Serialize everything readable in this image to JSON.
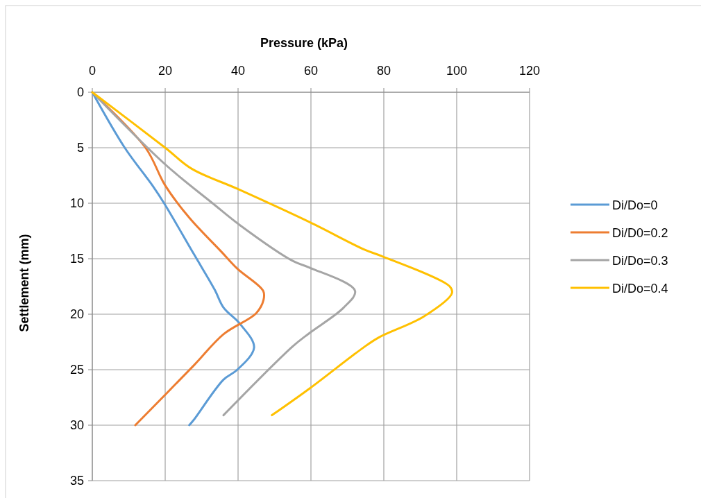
{
  "chart_data": {
    "type": "line",
    "xlabel": "Pressure (kPa)",
    "ylabel": "Settlement (mm)",
    "xlim": [
      0,
      120
    ],
    "xticks": [
      0,
      20,
      40,
      60,
      80,
      100,
      120
    ],
    "ylim": [
      35,
      0
    ],
    "yticks": [
      0,
      5,
      10,
      15,
      20,
      25,
      30,
      35
    ],
    "grid": true,
    "legend": "right",
    "marker": "none",
    "line_style": "solid",
    "series": [
      {
        "name": "Di/Do=0",
        "color": "#5b9bd5",
        "x": [
          0,
          8.9,
          16.5,
          19.7,
          27.9,
          33.6,
          36,
          40.6,
          44.4,
          39.8,
          36,
          27.9,
          26.6
        ],
        "values": [
          0,
          5,
          8.4,
          10,
          14.6,
          17.8,
          19.4,
          20.9,
          23,
          25,
          25.9,
          29.5,
          30
        ]
      },
      {
        "name": "Di/D0=0.2",
        "color": "#ed7d31",
        "x": [
          0,
          14.6,
          20,
          26.6,
          35.5,
          39.8,
          46.9,
          47,
          45,
          36,
          27.9,
          11.8
        ],
        "values": [
          0,
          5,
          8.4,
          11.3,
          14.4,
          15.9,
          17.9,
          18.7,
          19.9,
          21.8,
          24.6,
          30
        ]
      },
      {
        "name": "Di/Do=0.3",
        "color": "#a5a5a5",
        "x": [
          0,
          20,
          33,
          40.6,
          55,
          59.6,
          72.1,
          69,
          59.6,
          55,
          36
        ],
        "values": [
          0,
          6.5,
          10,
          12,
          15.2,
          15.8,
          17.9,
          19.4,
          21.7,
          22.9,
          29.1
        ]
      },
      {
        "name": "Di/Do=0.4",
        "color": "#ffc000",
        "x": [
          0,
          20,
          27.3,
          39.8,
          59.6,
          74.8,
          79.7,
          98.1,
          98.7,
          91,
          78.6,
          74,
          59.6,
          49.3
        ],
        "values": [
          0,
          5,
          6.9,
          8.7,
          11.7,
          14.2,
          14.8,
          17.5,
          18.1,
          20.2,
          22.1,
          23.1,
          26.7,
          29.1
        ]
      }
    ]
  }
}
